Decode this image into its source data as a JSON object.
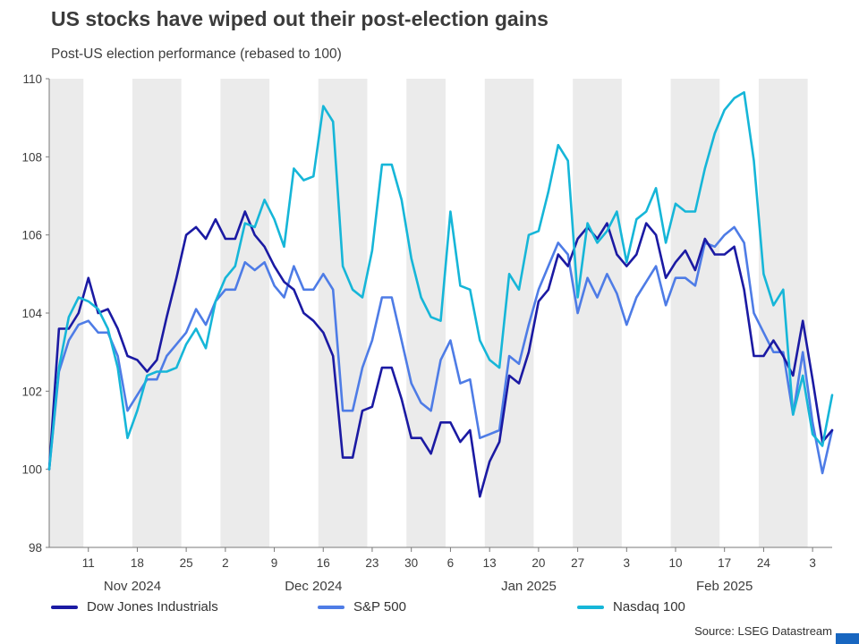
{
  "header": {
    "title": "US stocks have wiped out their post-election gains",
    "subtitle": "Post-US election performance (rebased to 100)"
  },
  "footer": {
    "source": "Source: LSEG Datastream",
    "brand_bar_color": "#1866c0"
  },
  "colors": {
    "band": "#ebebeb",
    "axis": "#7a7a7a",
    "tick_text": "#3d3d3d"
  },
  "chart_data": {
    "type": "line",
    "title": "US stocks have wiped out their post-election gains",
    "subtitle": "Post-US election performance (rebased to 100)",
    "legend_position": "bottom",
    "grid": "vertical-week-bands",
    "ylim": [
      98,
      110
    ],
    "yticks": [
      98,
      100,
      102,
      104,
      106,
      108,
      110
    ],
    "x": [
      "Nov 5",
      "Nov 6",
      "Nov 7",
      "Nov 8",
      "Nov 11",
      "Nov 12",
      "Nov 13",
      "Nov 14",
      "Nov 15",
      "Nov 18",
      "Nov 19",
      "Nov 20",
      "Nov 21",
      "Nov 22",
      "Nov 25",
      "Nov 26",
      "Nov 27",
      "Nov 29",
      "Dec 2",
      "Dec 3",
      "Dec 4",
      "Dec 5",
      "Dec 6",
      "Dec 9",
      "Dec 10",
      "Dec 11",
      "Dec 12",
      "Dec 13",
      "Dec 16",
      "Dec 17",
      "Dec 18",
      "Dec 19",
      "Dec 20",
      "Dec 23",
      "Dec 24",
      "Dec 26",
      "Dec 27",
      "Dec 30",
      "Dec 31",
      "Jan 2",
      "Jan 3",
      "Jan 6",
      "Jan 7",
      "Jan 8",
      "Jan 10",
      "Jan 13",
      "Jan 14",
      "Jan 15",
      "Jan 16",
      "Jan 17",
      "Jan 21",
      "Jan 22",
      "Jan 23",
      "Jan 24",
      "Jan 27",
      "Jan 28",
      "Jan 29",
      "Jan 30",
      "Jan 31",
      "Feb 3",
      "Feb 4",
      "Feb 5",
      "Feb 6",
      "Feb 7",
      "Feb 10",
      "Feb 11",
      "Feb 12",
      "Feb 13",
      "Feb 14",
      "Feb 18",
      "Feb 19",
      "Feb 20",
      "Feb 21",
      "Feb 24",
      "Feb 25",
      "Feb 26",
      "Feb 27",
      "Feb 28",
      "Mar 3",
      "Mar 4",
      "Mar 5"
    ],
    "series": [
      {
        "name": "Dow Jones Industrials",
        "color": "#1b1aa3",
        "values": [
          100.0,
          103.6,
          103.6,
          104.0,
          104.9,
          104.0,
          104.1,
          103.6,
          102.9,
          102.8,
          102.5,
          102.8,
          103.9,
          104.9,
          106.0,
          106.2,
          105.9,
          106.4,
          105.9,
          105.9,
          106.6,
          106.0,
          105.7,
          105.2,
          104.8,
          104.6,
          104.0,
          103.8,
          103.5,
          102.9,
          100.3,
          100.3,
          101.5,
          101.6,
          102.6,
          102.6,
          101.8,
          100.8,
          100.8,
          100.4,
          101.2,
          101.2,
          100.7,
          101.0,
          99.3,
          100.2,
          100.7,
          102.4,
          102.2,
          103.0,
          104.3,
          104.6,
          105.5,
          105.2,
          105.9,
          106.2,
          105.9,
          106.3,
          105.5,
          105.2,
          105.5,
          106.3,
          106.0,
          104.9,
          105.3,
          105.6,
          105.1,
          105.9,
          105.5,
          105.5,
          105.7,
          104.6,
          102.9,
          102.9,
          103.3,
          102.9,
          102.4,
          103.8,
          102.3,
          100.7,
          101.0
        ]
      },
      {
        "name": "S&P 500",
        "color": "#4e7ce6",
        "values": [
          100.0,
          102.5,
          103.3,
          103.7,
          103.8,
          103.5,
          103.5,
          102.9,
          101.5,
          101.9,
          102.3,
          102.3,
          102.9,
          103.2,
          103.5,
          104.1,
          103.7,
          104.3,
          104.6,
          104.6,
          105.3,
          105.1,
          105.3,
          104.7,
          104.4,
          105.2,
          104.6,
          104.6,
          105.0,
          104.6,
          101.5,
          101.5,
          102.6,
          103.3,
          104.4,
          104.4,
          103.3,
          102.2,
          101.7,
          101.5,
          102.8,
          103.3,
          102.2,
          102.3,
          100.8,
          100.9,
          101.0,
          102.9,
          102.7,
          103.7,
          104.6,
          105.2,
          105.8,
          105.5,
          104.0,
          104.9,
          104.4,
          105.0,
          104.5,
          103.7,
          104.4,
          104.8,
          105.2,
          104.2,
          104.9,
          104.9,
          104.7,
          105.8,
          105.7,
          106.0,
          106.2,
          105.8,
          104.0,
          103.5,
          103.0,
          103.0,
          101.4,
          103.0,
          101.2,
          99.9,
          101.0
        ]
      },
      {
        "name": "Nasdaq 100",
        "color": "#16b6d8",
        "values": [
          100.0,
          102.6,
          103.9,
          104.4,
          104.3,
          104.1,
          103.6,
          102.6,
          100.8,
          101.5,
          102.4,
          102.5,
          102.5,
          102.6,
          103.2,
          103.6,
          103.1,
          104.3,
          104.9,
          105.2,
          106.3,
          106.2,
          106.9,
          106.4,
          105.7,
          107.7,
          107.4,
          107.5,
          109.3,
          108.9,
          105.2,
          104.6,
          104.4,
          105.6,
          107.8,
          107.8,
          106.9,
          105.4,
          104.4,
          103.9,
          103.8,
          106.6,
          104.7,
          104.6,
          103.3,
          102.8,
          102.6,
          105.0,
          104.6,
          106.0,
          106.1,
          107.1,
          108.3,
          107.9,
          104.4,
          106.3,
          105.8,
          106.1,
          106.6,
          105.3,
          106.4,
          106.6,
          107.2,
          105.8,
          106.8,
          106.6,
          106.6,
          107.7,
          108.6,
          109.2,
          109.5,
          109.65,
          107.9,
          105.0,
          104.2,
          104.6,
          101.4,
          102.4,
          100.9,
          100.6,
          101.9
        ]
      }
    ],
    "xticks": [
      {
        "i": 4,
        "label": "11"
      },
      {
        "i": 9,
        "label": "18"
      },
      {
        "i": 14,
        "label": "25"
      },
      {
        "i": 18,
        "label": "2"
      },
      {
        "i": 23,
        "label": "9"
      },
      {
        "i": 28,
        "label": "16"
      },
      {
        "i": 33,
        "label": "23"
      },
      {
        "i": 37,
        "label": "30"
      },
      {
        "i": 41,
        "label": "6"
      },
      {
        "i": 45,
        "label": "13"
      },
      {
        "i": 50,
        "label": "20"
      },
      {
        "i": 54,
        "label": "27"
      },
      {
        "i": 59,
        "label": "3"
      },
      {
        "i": 64,
        "label": "10"
      },
      {
        "i": 69,
        "label": "17"
      },
      {
        "i": 73,
        "label": "24"
      },
      {
        "i": 78,
        "label": "3"
      }
    ],
    "month_labels": [
      {
        "i": 8.5,
        "label": "Nov 2024"
      },
      {
        "i": 27,
        "label": "Dec 2024"
      },
      {
        "i": 49,
        "label": "Jan 2025"
      },
      {
        "i": 69,
        "label": "Feb 2025"
      }
    ],
    "week_bands": [
      [
        0,
        3
      ],
      [
        4,
        8
      ],
      [
        9,
        13
      ],
      [
        14,
        17
      ],
      [
        18,
        22
      ],
      [
        23,
        27
      ],
      [
        28,
        32
      ],
      [
        33,
        36
      ],
      [
        37,
        40
      ],
      [
        41,
        44
      ],
      [
        45,
        49
      ],
      [
        50,
        53
      ],
      [
        54,
        58
      ],
      [
        59,
        63
      ],
      [
        64,
        68
      ],
      [
        69,
        72
      ],
      [
        73,
        77
      ],
      [
        78,
        80
      ]
    ]
  }
}
